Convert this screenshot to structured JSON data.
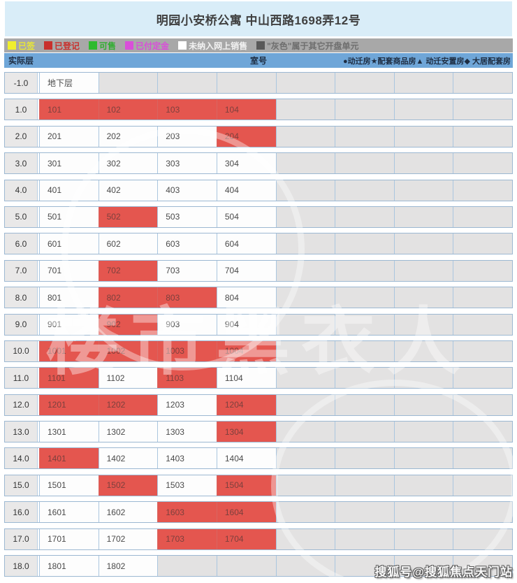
{
  "title": "明园小安桥公寓 中山西路1698弄12号",
  "legend": {
    "items": [
      {
        "label": "已签",
        "color": "#f0ef2e",
        "text_color": "#e8e636"
      },
      {
        "label": "已登记",
        "color": "#c9302c",
        "text_color": "#c9302c"
      },
      {
        "label": "可售",
        "color": "#2fba2f",
        "text_color": "#2fae2f"
      },
      {
        "label": "已付定金",
        "color": "#d94fd9",
        "text_color": "#d94fd9"
      },
      {
        "label": "未纳入网上销售",
        "color": "#ffffff",
        "text_color": "#f2f2f2"
      },
      {
        "label": "\"灰色\"属于其它开盘单元",
        "color": "#595959",
        "text_color": "#6e6e6e"
      }
    ]
  },
  "table_header": {
    "floor_label": "实际层",
    "room_label": "室号",
    "types_label": "●动迁房★配套商品房▲ 动迁安置房◆ 大居配套房"
  },
  "colors": {
    "title_bg": "#d9edf8",
    "legend_bg": "#a8a8a8",
    "header_bg": "#6fa6d8",
    "floor_bg": "#e9e8e8",
    "row_border": "#9cb8d2",
    "registered_bg": "#e4564f",
    "registered_text": "#7d403d",
    "offline_bg": "#fdfdfd",
    "other_bg": "#e3e2e2"
  },
  "statuses": {
    "registered": "已登记",
    "offline": "未纳入网上销售",
    "other": "属于其它开盘单元"
  },
  "rows": [
    {
      "floor": "-1.0",
      "cells": [
        {
          "room": "地下层",
          "status": "offline"
        },
        {
          "status": "other"
        },
        {
          "status": "other"
        },
        {
          "status": "other"
        },
        {
          "status": "other"
        },
        {
          "status": "other"
        },
        {
          "status": "other"
        },
        {
          "status": "other"
        }
      ]
    },
    {
      "floor": "1.0",
      "cells": [
        {
          "room": "101",
          "status": "registered"
        },
        {
          "room": "102",
          "status": "registered"
        },
        {
          "room": "103",
          "status": "registered"
        },
        {
          "room": "104",
          "status": "registered"
        },
        {
          "status": "other"
        },
        {
          "status": "other"
        },
        {
          "status": "other"
        },
        {
          "status": "other"
        }
      ]
    },
    {
      "floor": "2.0",
      "cells": [
        {
          "room": "201",
          "status": "offline"
        },
        {
          "room": "202",
          "status": "offline"
        },
        {
          "room": "203",
          "status": "offline"
        },
        {
          "room": "204",
          "status": "registered"
        },
        {
          "status": "other"
        },
        {
          "status": "other"
        },
        {
          "status": "other"
        },
        {
          "status": "other"
        }
      ]
    },
    {
      "floor": "3.0",
      "cells": [
        {
          "room": "301",
          "status": "offline"
        },
        {
          "room": "302",
          "status": "offline"
        },
        {
          "room": "303",
          "status": "offline"
        },
        {
          "room": "304",
          "status": "offline"
        },
        {
          "status": "other"
        },
        {
          "status": "other"
        },
        {
          "status": "other"
        },
        {
          "status": "other"
        }
      ]
    },
    {
      "floor": "4.0",
      "cells": [
        {
          "room": "401",
          "status": "offline"
        },
        {
          "room": "402",
          "status": "offline"
        },
        {
          "room": "403",
          "status": "offline"
        },
        {
          "room": "404",
          "status": "offline"
        },
        {
          "status": "other"
        },
        {
          "status": "other"
        },
        {
          "status": "other"
        },
        {
          "status": "other"
        }
      ]
    },
    {
      "floor": "5.0",
      "cells": [
        {
          "room": "501",
          "status": "offline"
        },
        {
          "room": "502",
          "status": "registered"
        },
        {
          "room": "503",
          "status": "offline"
        },
        {
          "room": "504",
          "status": "offline"
        },
        {
          "status": "other"
        },
        {
          "status": "other"
        },
        {
          "status": "other"
        },
        {
          "status": "other"
        }
      ]
    },
    {
      "floor": "6.0",
      "cells": [
        {
          "room": "601",
          "status": "offline"
        },
        {
          "room": "602",
          "status": "offline"
        },
        {
          "room": "603",
          "status": "offline"
        },
        {
          "room": "604",
          "status": "offline"
        },
        {
          "status": "other"
        },
        {
          "status": "other"
        },
        {
          "status": "other"
        },
        {
          "status": "other"
        }
      ]
    },
    {
      "floor": "7.0",
      "cells": [
        {
          "room": "701",
          "status": "offline"
        },
        {
          "room": "702",
          "status": "registered"
        },
        {
          "room": "703",
          "status": "offline"
        },
        {
          "room": "704",
          "status": "offline"
        },
        {
          "status": "other"
        },
        {
          "status": "other"
        },
        {
          "status": "other"
        },
        {
          "status": "other"
        }
      ]
    },
    {
      "floor": "8.0",
      "cells": [
        {
          "room": "801",
          "status": "offline"
        },
        {
          "room": "802",
          "status": "registered"
        },
        {
          "room": "803",
          "status": "registered"
        },
        {
          "room": "804",
          "status": "offline"
        },
        {
          "status": "other"
        },
        {
          "status": "other"
        },
        {
          "status": "other"
        },
        {
          "status": "other"
        }
      ]
    },
    {
      "floor": "9.0",
      "cells": [
        {
          "room": "901",
          "status": "offline"
        },
        {
          "room": "902",
          "status": "registered"
        },
        {
          "room": "903",
          "status": "offline"
        },
        {
          "room": "904",
          "status": "offline"
        },
        {
          "status": "other"
        },
        {
          "status": "other"
        },
        {
          "status": "other"
        },
        {
          "status": "other"
        }
      ]
    },
    {
      "floor": "10.0",
      "cells": [
        {
          "room": "1001",
          "status": "registered"
        },
        {
          "room": "1002",
          "status": "registered"
        },
        {
          "room": "1003",
          "status": "registered"
        },
        {
          "room": "1004",
          "status": "registered"
        },
        {
          "status": "other"
        },
        {
          "status": "other"
        },
        {
          "status": "other"
        },
        {
          "status": "other"
        }
      ]
    },
    {
      "floor": "11.0",
      "cells": [
        {
          "room": "1101",
          "status": "registered"
        },
        {
          "room": "1102",
          "status": "offline"
        },
        {
          "room": "1103",
          "status": "registered"
        },
        {
          "room": "1104",
          "status": "offline"
        },
        {
          "status": "other"
        },
        {
          "status": "other"
        },
        {
          "status": "other"
        },
        {
          "status": "other"
        }
      ]
    },
    {
      "floor": "12.0",
      "cells": [
        {
          "room": "1201",
          "status": "registered"
        },
        {
          "room": "1202",
          "status": "registered"
        },
        {
          "room": "1203",
          "status": "offline"
        },
        {
          "room": "1204",
          "status": "registered"
        },
        {
          "status": "other"
        },
        {
          "status": "other"
        },
        {
          "status": "other"
        },
        {
          "status": "other"
        }
      ]
    },
    {
      "floor": "13.0",
      "cells": [
        {
          "room": "1301",
          "status": "offline"
        },
        {
          "room": "1302",
          "status": "offline"
        },
        {
          "room": "1303",
          "status": "offline"
        },
        {
          "room": "1304",
          "status": "registered"
        },
        {
          "status": "other"
        },
        {
          "status": "other"
        },
        {
          "status": "other"
        },
        {
          "status": "other"
        }
      ]
    },
    {
      "floor": "14.0",
      "cells": [
        {
          "room": "1401",
          "status": "registered"
        },
        {
          "room": "1402",
          "status": "offline"
        },
        {
          "room": "1403",
          "status": "offline"
        },
        {
          "room": "1404",
          "status": "offline"
        },
        {
          "status": "other"
        },
        {
          "status": "other"
        },
        {
          "status": "other"
        },
        {
          "status": "other"
        }
      ]
    },
    {
      "floor": "15.0",
      "cells": [
        {
          "room": "1501",
          "status": "offline"
        },
        {
          "room": "1502",
          "status": "registered"
        },
        {
          "room": "1503",
          "status": "offline"
        },
        {
          "room": "1504",
          "status": "registered"
        },
        {
          "status": "other"
        },
        {
          "status": "other"
        },
        {
          "status": "other"
        },
        {
          "status": "other"
        }
      ]
    },
    {
      "floor": "16.0",
      "cells": [
        {
          "room": "1601",
          "status": "offline"
        },
        {
          "room": "1602",
          "status": "offline"
        },
        {
          "room": "1603",
          "status": "registered"
        },
        {
          "room": "1604",
          "status": "registered"
        },
        {
          "status": "other"
        },
        {
          "status": "other"
        },
        {
          "status": "other"
        },
        {
          "status": "other"
        }
      ]
    },
    {
      "floor": "17.0",
      "cells": [
        {
          "room": "1701",
          "status": "offline"
        },
        {
          "room": "1702",
          "status": "offline"
        },
        {
          "room": "1703",
          "status": "registered"
        },
        {
          "room": "1704",
          "status": "registered"
        },
        {
          "status": "other"
        },
        {
          "status": "other"
        },
        {
          "status": "other"
        },
        {
          "status": "other"
        }
      ]
    },
    {
      "floor": "18.0",
      "cells": [
        {
          "room": "1801",
          "status": "offline"
        },
        {
          "room": "1802",
          "status": "offline"
        },
        {
          "status": "other"
        },
        {
          "status": "other"
        },
        {
          "status": "other"
        },
        {
          "status": "other"
        },
        {
          "status": "other"
        },
        {
          "status": "other"
        }
      ]
    }
  ],
  "watermark": {
    "center_text": "楼市黑衣人",
    "bottom_right": "搜狐号@搜狐焦点天门站"
  }
}
